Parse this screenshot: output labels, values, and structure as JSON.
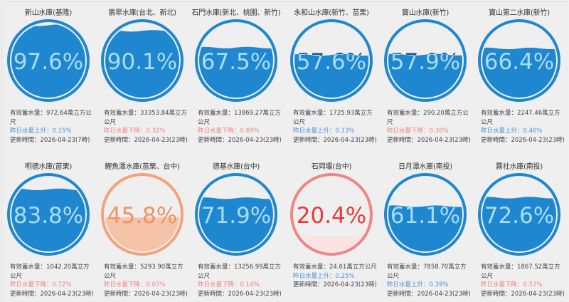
{
  "colors": {
    "blue_ring": "#1e87cf",
    "blue_water": "#1e87cf",
    "blue_text_in_water": "#a9dcf7",
    "blue_text_above": "#155f95",
    "orange_ring": "#f5a27a",
    "orange_water": "#f5c3a8",
    "orange_text": "#f39163",
    "red_ring": "#f08585",
    "red_water": "#fde2e2",
    "red_text": "#e8393b",
    "rise_text": "#4a90d9",
    "fall_text": "#f08080",
    "page_bg": "#efefef"
  },
  "labels": {
    "capacity_prefix": "有效蓄水量：",
    "capacity_unit": "萬立方公尺",
    "update_prefix": "更新時間：",
    "rise_prefix": "昨日水量上升：",
    "fall_prefix": "昨日水量下降："
  },
  "reservoirs": [
    {
      "name": "新山水庫(基隆)",
      "percent": "97.6%",
      "level": 97.6,
      "theme": "blue",
      "capacity": "有效蓄水量：972.64萬立方公尺",
      "change": "昨日水量上升：0.15%",
      "trend": "up",
      "updated": "更新時間：2026-04-23(7時)"
    },
    {
      "name": "翡翠水庫(台北、新北)",
      "percent": "90.1%",
      "level": 90.1,
      "theme": "blue",
      "capacity": "有效蓄水量：33353.84萬立方公尺",
      "change": "昨日水量下降：0.32%",
      "trend": "down",
      "updated": "更新時間：2026-04-23(23時)"
    },
    {
      "name": "石門水庫(新北、桃園、新竹)",
      "percent": "67.5%",
      "level": 67.5,
      "theme": "blue",
      "capacity": "有效蓄水量：13869.27萬立方公尺",
      "change": "昨日水量下降：0.69%",
      "trend": "down",
      "updated": "更新時間：2026-04-23(23時)"
    },
    {
      "name": "永和山水庫(新竹、苗栗)",
      "percent": "57.6%",
      "level": 57.6,
      "theme": "blue",
      "capacity": "有效蓄水量：1725.93萬立方公尺",
      "change": "昨日水量上升：0.13%",
      "trend": "up",
      "updated": "更新時間：2026-04-23(23時)"
    },
    {
      "name": "寶山水庫(新竹)",
      "percent": "57.9%",
      "level": 57.9,
      "theme": "blue",
      "capacity": "有效蓄水量：290.20萬立方公尺",
      "change": "昨日水量下降：0.36%",
      "trend": "down",
      "updated": "更新時間：2026-04-23(23時)"
    },
    {
      "name": "寶山第二水庫(新竹)",
      "percent": "66.4%",
      "level": 66.4,
      "theme": "blue",
      "capacity": "有效蓄水量：2247.46萬立方公尺",
      "change": "昨日水量上升：0.46%",
      "trend": "up",
      "updated": "更新時間：2026-04-23(23時)"
    },
    {
      "name": "明德水庫(苗栗)",
      "percent": "83.8%",
      "level": 83.8,
      "theme": "blue",
      "capacity": "有效蓄水量：1042.20萬立方公尺",
      "change": "昨日水量下降：0.72%",
      "trend": "down",
      "updated": "更新時間：2026-04-23(23時)"
    },
    {
      "name": "鯉魚潭水庫(苗栗、台中)",
      "percent": "45.8%",
      "level": 45.8,
      "theme": "orange",
      "capacity": "有效蓄水量：5293.90萬立方公尺",
      "change": "昨日水量下降：0.07%",
      "trend": "down",
      "updated": "更新時間：2026-04-23(23時)"
    },
    {
      "name": "德基水庫(台中)",
      "percent": "71.9%",
      "level": 71.9,
      "theme": "blue",
      "capacity": "有效蓄水量：13256.99萬立方公尺",
      "change": "昨日水量下降：0.14%",
      "trend": "down",
      "updated": "更新時間：2026-04-23(23時)"
    },
    {
      "name": "石岡壩(台中)",
      "percent": "20.4%",
      "level": 20.4,
      "theme": "red",
      "capacity": "有效蓄水量：24.61萬立方公尺",
      "change": "昨日水量上升：0.25%",
      "trend": "up",
      "updated": "更新時間：2026-04-23(23時)"
    },
    {
      "name": "日月潭水庫(南投)",
      "percent": "61.1%",
      "level": 61.1,
      "theme": "blue",
      "capacity": "有效蓄水量：7858.70萬立方公尺",
      "change": "昨日水量上升：0.39%",
      "trend": "up",
      "updated": "更新時間：2026-04-23(23時)"
    },
    {
      "name": "霧社水庫(南投)",
      "percent": "72.6%",
      "level": 72.6,
      "theme": "blue",
      "capacity": "有效蓄水量：1867.52萬立方公尺",
      "change": "昨日水量下降：0.57%",
      "trend": "down",
      "updated": "更新時間：2026-04-23(23時)"
    }
  ]
}
